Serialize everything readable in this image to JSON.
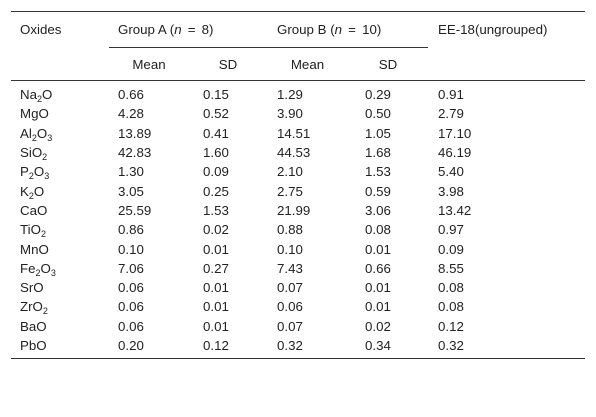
{
  "header": {
    "oxides": "Oxides",
    "group_a": {
      "prefix": "Group A (",
      "n": "n",
      "eq": "=",
      "count": "8)"
    },
    "group_b": {
      "prefix": "Group B (",
      "n": "n",
      "eq": "=",
      "count": "10)"
    },
    "ee18": "EE-18(ungrouped)",
    "mean": "Mean",
    "sd": "SD"
  },
  "rows": [
    {
      "base": "Na",
      "sub1": "2",
      "tail": "O",
      "sub2": "",
      "a_mean": "0.66",
      "a_sd": "0.15",
      "b_mean": "1.29",
      "b_sd": "0.29",
      "ee": "0.91"
    },
    {
      "base": "MgO",
      "sub1": "",
      "tail": "",
      "sub2": "",
      "a_mean": "4.28",
      "a_sd": "0.52",
      "b_mean": "3.90",
      "b_sd": "0.50",
      "ee": "2.79"
    },
    {
      "base": "Al",
      "sub1": "2",
      "tail": "O",
      "sub2": "3",
      "a_mean": "13.89",
      "a_sd": "0.41",
      "b_mean": "14.51",
      "b_sd": "1.05",
      "ee": "17.10"
    },
    {
      "base": "SiO",
      "sub1": "2",
      "tail": "",
      "sub2": "",
      "a_mean": "42.83",
      "a_sd": "1.60",
      "b_mean": "44.53",
      "b_sd": "1.68",
      "ee": "46.19"
    },
    {
      "base": "P",
      "sub1": "2",
      "tail": "O",
      "sub2": "3",
      "a_mean": "1.30",
      "a_sd": "0.09",
      "b_mean": "2.10",
      "b_sd": "1.53",
      "ee": "5.40"
    },
    {
      "base": "K",
      "sub1": "2",
      "tail": "O",
      "sub2": "",
      "a_mean": "3.05",
      "a_sd": "0.25",
      "b_mean": "2.75",
      "b_sd": "0.59",
      "ee": "3.98"
    },
    {
      "base": "CaO",
      "sub1": "",
      "tail": "",
      "sub2": "",
      "a_mean": "25.59",
      "a_sd": "1.53",
      "b_mean": "21.99",
      "b_sd": "3.06",
      "ee": "13.42"
    },
    {
      "base": "TiO",
      "sub1": "2",
      "tail": "",
      "sub2": "",
      "a_mean": "0.86",
      "a_sd": "0.02",
      "b_mean": "0.88",
      "b_sd": "0.08",
      "ee": "0.97"
    },
    {
      "base": "MnO",
      "sub1": "",
      "tail": "",
      "sub2": "",
      "a_mean": "0.10",
      "a_sd": "0.01",
      "b_mean": "0.10",
      "b_sd": "0.01",
      "ee": "0.09"
    },
    {
      "base": "Fe",
      "sub1": "2",
      "tail": "O",
      "sub2": "3",
      "a_mean": "7.06",
      "a_sd": "0.27",
      "b_mean": "7.43",
      "b_sd": "0.66",
      "ee": "8.55"
    },
    {
      "base": "SrO",
      "sub1": "",
      "tail": "",
      "sub2": "",
      "a_mean": "0.06",
      "a_sd": "0.01",
      "b_mean": "0.07",
      "b_sd": "0.01",
      "ee": "0.08"
    },
    {
      "base": "ZrO",
      "sub1": "2",
      "tail": "",
      "sub2": "",
      "a_mean": "0.06",
      "a_sd": "0.01",
      "b_mean": "0.06",
      "b_sd": "0.01",
      "ee": "0.08"
    },
    {
      "base": "BaO",
      "sub1": "",
      "tail": "",
      "sub2": "",
      "a_mean": "0.06",
      "a_sd": "0.01",
      "b_mean": "0.07",
      "b_sd": "0.02",
      "ee": "0.12"
    },
    {
      "base": "PbO",
      "sub1": "",
      "tail": "",
      "sub2": "",
      "a_mean": "0.20",
      "a_sd": "0.12",
      "b_mean": "0.32",
      "b_sd": "0.34",
      "ee": "0.32"
    }
  ]
}
